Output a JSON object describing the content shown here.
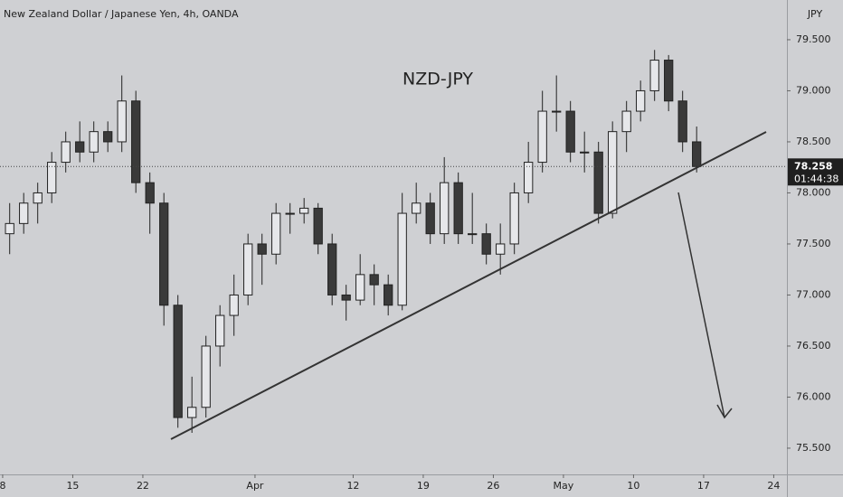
{
  "chart_data": {
    "type": "candlestick",
    "title": "New Zealand Dollar / Japanese Yen, 4h, OANDA",
    "annotation": "NZD-JPY",
    "currency": "JPY",
    "last_price": 78.258,
    "countdown": "01:44:38",
    "up_color": "#e6e7ea",
    "down_color": "#3a3a3a",
    "x": [
      0,
      1,
      2,
      3,
      4,
      5,
      6,
      7,
      8,
      9,
      10,
      11,
      12,
      13,
      14,
      15,
      16,
      17,
      18,
      19,
      20,
      21,
      22,
      23,
      24,
      25,
      26,
      27,
      28,
      29,
      30,
      31,
      32,
      33,
      34,
      35,
      36,
      37,
      38,
      39,
      40,
      41,
      42,
      43,
      44,
      45,
      46,
      47,
      48,
      49
    ],
    "open": [
      77.6,
      77.7,
      77.9,
      78.0,
      78.3,
      78.5,
      78.4,
      78.6,
      78.5,
      78.9,
      78.1,
      77.9,
      76.9,
      75.8,
      75.9,
      76.5,
      76.8,
      77.0,
      77.5,
      77.4,
      77.8,
      77.8,
      77.85,
      77.5,
      77.0,
      76.95,
      77.2,
      77.1,
      76.9,
      77.8,
      77.9,
      77.6,
      78.1,
      77.6,
      77.6,
      77.4,
      77.5,
      78.0,
      78.3,
      78.8,
      78.8,
      78.4,
      78.4,
      77.8,
      78.6,
      78.8,
      79.0,
      79.3,
      78.9,
      78.5
    ],
    "high": [
      77.9,
      78.0,
      78.1,
      78.4,
      78.6,
      78.7,
      78.7,
      78.7,
      79.15,
      79.0,
      78.2,
      78.0,
      77.0,
      76.2,
      76.6,
      76.9,
      77.2,
      77.6,
      77.6,
      77.9,
      77.9,
      77.95,
      77.9,
      77.6,
      77.1,
      77.4,
      77.3,
      77.2,
      78.0,
      78.1,
      78.0,
      78.35,
      78.2,
      78.0,
      77.7,
      77.7,
      78.1,
      78.5,
      79.0,
      79.15,
      78.9,
      78.6,
      78.5,
      78.7,
      78.9,
      79.1,
      79.4,
      79.35,
      79.0,
      78.65
    ],
    "low": [
      77.4,
      77.6,
      77.7,
      77.9,
      78.2,
      78.3,
      78.3,
      78.4,
      78.4,
      78.0,
      77.6,
      76.7,
      75.7,
      75.65,
      75.8,
      76.3,
      76.6,
      76.9,
      77.1,
      77.3,
      77.6,
      77.7,
      77.4,
      76.9,
      76.75,
      76.9,
      76.9,
      76.8,
      76.85,
      77.7,
      77.5,
      77.5,
      77.5,
      77.5,
      77.3,
      77.2,
      77.4,
      77.9,
      78.2,
      78.6,
      78.3,
      78.2,
      77.7,
      77.75,
      78.4,
      78.7,
      78.9,
      78.8,
      78.4,
      78.2
    ],
    "close": [
      77.7,
      77.9,
      78.0,
      78.3,
      78.5,
      78.4,
      78.6,
      78.5,
      78.9,
      78.1,
      77.9,
      76.9,
      75.8,
      75.9,
      76.5,
      76.8,
      77.0,
      77.5,
      77.4,
      77.8,
      77.8,
      77.85,
      77.5,
      77.0,
      76.95,
      77.2,
      77.1,
      76.9,
      77.8,
      77.9,
      77.6,
      78.1,
      77.6,
      77.6,
      77.4,
      77.5,
      78.0,
      78.3,
      78.8,
      78.8,
      78.4,
      78.4,
      77.8,
      78.6,
      78.8,
      79.0,
      79.3,
      78.9,
      78.5,
      78.258
    ],
    "xlim": [
      -0.19,
      55.94
    ],
    "xticks": [
      {
        "value": 0,
        "label": "8"
      },
      {
        "value": 5,
        "label": "15"
      },
      {
        "value": 10,
        "label": "22"
      },
      {
        "value": 18,
        "label": "Apr"
      },
      {
        "value": 25,
        "label": "12"
      },
      {
        "value": 30,
        "label": "19"
      },
      {
        "value": 35,
        "label": "26"
      },
      {
        "value": 40,
        "label": "May"
      },
      {
        "value": 45,
        "label": "10"
      },
      {
        "value": 50,
        "label": "17"
      },
      {
        "value": 55,
        "label": "24"
      }
    ],
    "ylim": [
      75.243,
      79.889
    ],
    "yticks": [
      {
        "value": 75.5,
        "label": "75.500"
      },
      {
        "value": 76,
        "label": "76.000"
      },
      {
        "value": 76.5,
        "label": "76.500"
      },
      {
        "value": 77,
        "label": "77.000"
      },
      {
        "value": 77.5,
        "label": "77.500"
      },
      {
        "value": 78,
        "label": "78.000"
      },
      {
        "value": 78.5,
        "label": "78.500"
      },
      {
        "value": 79,
        "label": "79.000"
      },
      {
        "value": 79.5,
        "label": "79.500"
      }
    ],
    "grid": false
  }
}
